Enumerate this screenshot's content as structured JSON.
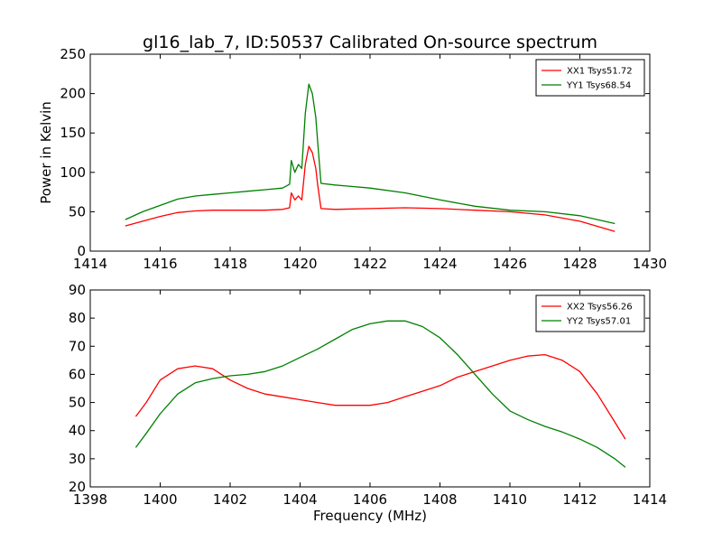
{
  "chart_data": [
    {
      "type": "line",
      "title": "gl16_lab_7, ID:50537 Calibrated On-source spectrum",
      "xlabel": "",
      "ylabel": "Power in Kelvin",
      "xlim": [
        1414,
        1430
      ],
      "ylim": [
        0,
        250
      ],
      "xticks": [
        1414,
        1416,
        1418,
        1420,
        1422,
        1424,
        1426,
        1428,
        1430
      ],
      "yticks": [
        0,
        50,
        100,
        150,
        200,
        250
      ],
      "grid": false,
      "legend": "top-right",
      "series": [
        {
          "name": "XX1 Tsys51.72",
          "color": "#ff0000",
          "x": [
            1415.0,
            1415.5,
            1416.0,
            1416.5,
            1417.0,
            1417.5,
            1418.0,
            1418.5,
            1419.0,
            1419.5,
            1419.7,
            1419.75,
            1419.85,
            1419.95,
            1420.05,
            1420.15,
            1420.25,
            1420.35,
            1420.45,
            1420.5,
            1420.6,
            1421.0,
            1422.0,
            1423.0,
            1424.0,
            1425.0,
            1426.0,
            1427.0,
            1428.0,
            1429.0
          ],
          "y": [
            32,
            38,
            44,
            49,
            51,
            52,
            52,
            52,
            52,
            53,
            55,
            74,
            65,
            70,
            65,
            110,
            133,
            125,
            105,
            85,
            54,
            53,
            54,
            55,
            54,
            52,
            50,
            46,
            38,
            25
          ]
        },
        {
          "name": "YY1 Tsys68.54",
          "color": "#008000",
          "x": [
            1415.0,
            1415.5,
            1416.0,
            1416.5,
            1417.0,
            1417.5,
            1418.0,
            1418.5,
            1419.0,
            1419.5,
            1419.7,
            1419.75,
            1419.85,
            1419.95,
            1420.05,
            1420.15,
            1420.25,
            1420.35,
            1420.45,
            1420.5,
            1420.6,
            1421.0,
            1422.0,
            1423.0,
            1424.0,
            1425.0,
            1426.0,
            1427.0,
            1428.0,
            1429.0
          ],
          "y": [
            40,
            50,
            58,
            66,
            70,
            72,
            74,
            76,
            78,
            80,
            85,
            115,
            100,
            110,
            105,
            175,
            212,
            200,
            170,
            140,
            86,
            84,
            80,
            74,
            65,
            57,
            52,
            50,
            45,
            35
          ]
        }
      ]
    },
    {
      "type": "line",
      "title": "",
      "xlabel": "Frequency (MHz)",
      "ylabel": "",
      "xlim": [
        1398,
        1414
      ],
      "ylim": [
        20,
        90
      ],
      "xticks": [
        1398,
        1400,
        1402,
        1404,
        1406,
        1408,
        1410,
        1412,
        1414
      ],
      "yticks": [
        20,
        30,
        40,
        50,
        60,
        70,
        80,
        90
      ],
      "grid": false,
      "legend": "top-right",
      "series": [
        {
          "name": "XX2 Tsys56.26",
          "color": "#ff0000",
          "x": [
            1399.3,
            1399.6,
            1400.0,
            1400.5,
            1401.0,
            1401.5,
            1402.0,
            1402.5,
            1403.0,
            1403.5,
            1404.0,
            1404.5,
            1405.0,
            1405.5,
            1406.0,
            1406.5,
            1407.0,
            1407.5,
            1408.0,
            1408.5,
            1409.0,
            1409.5,
            1410.0,
            1410.5,
            1411.0,
            1411.5,
            1412.0,
            1412.5,
            1413.0,
            1413.3
          ],
          "y": [
            45,
            50,
            58,
            62,
            63,
            62,
            58,
            55,
            53,
            52,
            51,
            50,
            49,
            49,
            49,
            50,
            52,
            54,
            56,
            59,
            61,
            63,
            65,
            66.5,
            67,
            65,
            61,
            53,
            43,
            37
          ]
        },
        {
          "name": "YY2 Tsys57.01",
          "color": "#008000",
          "x": [
            1399.3,
            1399.6,
            1400.0,
            1400.5,
            1401.0,
            1401.5,
            1402.0,
            1402.5,
            1403.0,
            1403.5,
            1404.0,
            1404.5,
            1405.0,
            1405.5,
            1406.0,
            1406.5,
            1407.0,
            1407.5,
            1408.0,
            1408.5,
            1409.0,
            1409.5,
            1410.0,
            1410.5,
            1411.0,
            1411.5,
            1412.0,
            1412.5,
            1413.0,
            1413.3
          ],
          "y": [
            34,
            39,
            46,
            53,
            57,
            58.5,
            59.5,
            60,
            61,
            63,
            66,
            69,
            72.5,
            76,
            78,
            79,
            79,
            77,
            73,
            67,
            60,
            53,
            47,
            44,
            41.5,
            39.5,
            37,
            34,
            30,
            27
          ]
        }
      ]
    }
  ]
}
